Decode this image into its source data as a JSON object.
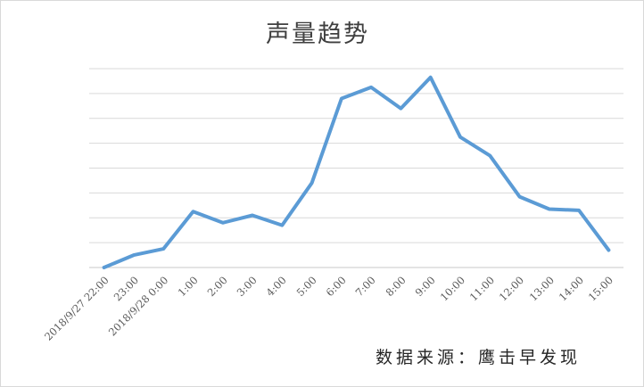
{
  "page": {
    "background": "#ffffff",
    "border_color": "#d9d9d9"
  },
  "chart": {
    "title": "声量趋势",
    "source_note": "数据来源：鹰击早发现",
    "colors": {
      "line": "#5b9bd5",
      "gridline": "#d9d9d9",
      "axis_line": "#c9c9c9",
      "title_text": "#3f3f3f",
      "tick_label": "#595959",
      "source_text": "#262626"
    }
  },
  "chart_data": {
    "type": "line",
    "title": "声量趋势",
    "categories": [
      "2018/9/27 22:00",
      "23:00",
      "2018/9/28 0:00",
      "1:00",
      "2:00",
      "3:00",
      "4:00",
      "5:00",
      "6:00",
      "7:00",
      "8:00",
      "9:00",
      "10:00",
      "11:00",
      "12:00",
      "13:00",
      "14:00",
      "15:00"
    ],
    "values": [
      0,
      0.5,
      0.75,
      2.25,
      1.8,
      2.1,
      1.7,
      3.4,
      6.8,
      7.25,
      6.4,
      7.65,
      5.25,
      4.5,
      2.85,
      2.35,
      2.3,
      0.7
    ],
    "xlabel": "",
    "ylabel": "",
    "ylim": [
      0,
      8
    ],
    "gridline_interval": 1,
    "y_axis_labels": "hidden",
    "legend": "none",
    "grid": "horizontal",
    "x_tick_rotation_deg": 45,
    "annotation": "数据来源：鹰击早发现"
  }
}
